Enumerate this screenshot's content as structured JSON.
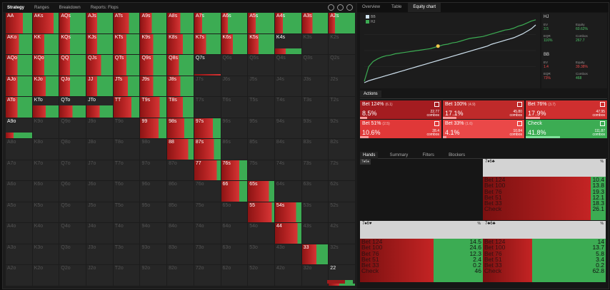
{
  "topbar": {
    "strategy": "Strategy",
    "ranges": "Ranges",
    "breakdown": "Breakdown",
    "reports": "Reports: Flops"
  },
  "grid": {
    "labels": [
      [
        "AA",
        "AKs",
        "AQs",
        "AJs",
        "ATs",
        "A9s",
        "A8s",
        "A7s",
        "A6s",
        "A5s",
        "A4s",
        "A3s",
        "A2s"
      ],
      [
        "AKo",
        "KK",
        "KQs",
        "KJs",
        "KTs",
        "K9s",
        "K8s",
        "K7s",
        "K6s",
        "K5s",
        "K4s",
        "K3s",
        "K2s"
      ],
      [
        "AQo",
        "KQo",
        "QQ",
        "QJs",
        "QTs",
        "Q9s",
        "Q8s",
        "Q7s",
        "Q6s",
        "Q5s",
        "Q4s",
        "Q3s",
        "Q2s"
      ],
      [
        "AJo",
        "KJo",
        "QJo",
        "JJ",
        "JTs",
        "J9s",
        "J8s",
        "J7s",
        "J6s",
        "J5s",
        "J4s",
        "J3s",
        "J2s"
      ],
      [
        "ATo",
        "KTo",
        "QTo",
        "JTo",
        "TT",
        "T9s",
        "T8s",
        "T7s",
        "T6s",
        "T5s",
        "T4s",
        "T3s",
        "T2s"
      ],
      [
        "A9o",
        "K9o",
        "Q9o",
        "J9o",
        "T9o",
        "99",
        "98s",
        "97s",
        "96s",
        "95s",
        "94s",
        "93s",
        "92s"
      ],
      [
        "A8o",
        "K8o",
        "Q8o",
        "J8o",
        "T8o",
        "98o",
        "88",
        "87s",
        "86s",
        "85s",
        "84s",
        "83s",
        "82s"
      ],
      [
        "A7o",
        "K7o",
        "Q7o",
        "J7o",
        "T7o",
        "97o",
        "87o",
        "77",
        "76s",
        "75s",
        "74s",
        "73s",
        "72s"
      ],
      [
        "A6o",
        "K6o",
        "Q6o",
        "J6o",
        "T6o",
        "96o",
        "86o",
        "76o",
        "66",
        "65s",
        "64s",
        "63s",
        "62s"
      ],
      [
        "A5o",
        "K5o",
        "Q5o",
        "J5o",
        "T5o",
        "95o",
        "85o",
        "75o",
        "65o",
        "55",
        "54s",
        "53s",
        "52s"
      ],
      [
        "A4o",
        "K4o",
        "Q4o",
        "J4o",
        "T4o",
        "94o",
        "84o",
        "74o",
        "64o",
        "54o",
        "44",
        "43s",
        "42s"
      ],
      [
        "A3o",
        "K3o",
        "Q3o",
        "J3o",
        "T3o",
        "93o",
        "83o",
        "73o",
        "63o",
        "53o",
        "43o",
        "33",
        "32s"
      ],
      [
        "A2o",
        "K2o",
        "Q2o",
        "J2o",
        "T2o",
        "92o",
        "82o",
        "72o",
        "62o",
        "52o",
        "42o",
        "32o",
        "22"
      ]
    ],
    "weights": [
      [
        1,
        1,
        1,
        1,
        1,
        1,
        1,
        1,
        1,
        1,
        1,
        1,
        1
      ],
      [
        1,
        1,
        1,
        1,
        1,
        1,
        1,
        1,
        1,
        1,
        0.3,
        0,
        0
      ],
      [
        1,
        1,
        1,
        1,
        1,
        1,
        1,
        0.05,
        0,
        0,
        0,
        0,
        0
      ],
      [
        1,
        1,
        1,
        1,
        1,
        1,
        1,
        0,
        0,
        0,
        0,
        0,
        0
      ],
      [
        1,
        0.6,
        0.6,
        0.6,
        1,
        1,
        1,
        0,
        0,
        0,
        0,
        0,
        0
      ],
      [
        0.3,
        0,
        0,
        0,
        0,
        1,
        1,
        1,
        0,
        0,
        0,
        0,
        0
      ],
      [
        0,
        0,
        0,
        0,
        0,
        0,
        1,
        1,
        0,
        0,
        0,
        0,
        0
      ],
      [
        0,
        0,
        0,
        0,
        0,
        0,
        0,
        1,
        1,
        0,
        0,
        0,
        0
      ],
      [
        0,
        0,
        0,
        0,
        0,
        0,
        0,
        0,
        1,
        1,
        0,
        0,
        0
      ],
      [
        0,
        0,
        0,
        0,
        0,
        0,
        0,
        0,
        0,
        1,
        1,
        0,
        0
      ],
      [
        0,
        0,
        0,
        0,
        0,
        0,
        0,
        0,
        0,
        0,
        1,
        0,
        0
      ],
      [
        0,
        0,
        0,
        0,
        0,
        0,
        0,
        0,
        0,
        0,
        0,
        1,
        0
      ],
      [
        0,
        0,
        0,
        0,
        0,
        0,
        0,
        0,
        0,
        0,
        0,
        0,
        0.1
      ]
    ],
    "green_share": [
      [
        0.35,
        0.2,
        0.6,
        0.6,
        0.4,
        0.55,
        0.5,
        0.7,
        0.75,
        0.7,
        0.7,
        0.6,
        0.75
      ],
      [
        0.5,
        0.55,
        0.6,
        0.6,
        0.5,
        0.5,
        0.4,
        0.55,
        0.55,
        0.6,
        0.6,
        0,
        0
      ],
      [
        0.55,
        0.55,
        0.6,
        0.45,
        0.5,
        0.5,
        0.55,
        0,
        0,
        0,
        0,
        0,
        0
      ],
      [
        0.55,
        0.5,
        0.6,
        0.6,
        0.45,
        0.5,
        0.5,
        0,
        0,
        0,
        0,
        0,
        0
      ],
      [
        0.55,
        0.5,
        0.5,
        0.5,
        0.3,
        0.25,
        0.4,
        0,
        0,
        0,
        0,
        0,
        0
      ],
      [
        0.7,
        0,
        0,
        0,
        0,
        0.3,
        0.35,
        0.3,
        0,
        0,
        0,
        0,
        0
      ],
      [
        0,
        0,
        0,
        0,
        0,
        0,
        0.2,
        0.25,
        0,
        0,
        0,
        0,
        0
      ],
      [
        0,
        0,
        0,
        0,
        0,
        0,
        0,
        0.15,
        0.3,
        0,
        0,
        0,
        0
      ],
      [
        0,
        0,
        0,
        0,
        0,
        0,
        0,
        0,
        0.3,
        0.2,
        0,
        0,
        0
      ],
      [
        0,
        0,
        0,
        0,
        0,
        0,
        0,
        0,
        0,
        0.1,
        0.2,
        0,
        0
      ],
      [
        0,
        0,
        0,
        0,
        0,
        0,
        0,
        0,
        0,
        0,
        0.15,
        0,
        0
      ],
      [
        0,
        0,
        0,
        0,
        0,
        0,
        0,
        0,
        0,
        0,
        0,
        0.45,
        0
      ],
      [
        0,
        0,
        0,
        0,
        0,
        0,
        0,
        0,
        0,
        0,
        0,
        0,
        0.6
      ]
    ]
  },
  "right_tabs": [
    "Overview",
    "Table",
    "Equity chart"
  ],
  "equity_chart": {
    "legend": [
      "BB",
      "HJ"
    ]
  },
  "stats": {
    "hj": {
      "title": "HJ",
      "ev_label": "EV",
      "ev": "3.5",
      "eq_label": "Equity",
      "eq": "60.62%",
      "eqr_label": "EQR",
      "eqr": "116%",
      "combos_label": "Combos",
      "combos": "267.7"
    },
    "bb": {
      "title": "BB",
      "ev_label": "EV",
      "ev": "1.4",
      "eq_label": "Equity",
      "eq": "39.38%",
      "eqr_label": "EQR",
      "eqr": "73%",
      "combos_label": "Combos",
      "combos": "468"
    }
  },
  "actions_label": "Actions",
  "actions": [
    {
      "name": "Bet 124%",
      "sub": "(6.1)",
      "pct": "8.5%",
      "combos": "22.77",
      "combos_label": "combos",
      "color": "#a41c20",
      "barpct": 8.5
    },
    {
      "name": "Bet 100%",
      "sub": "(4.9)",
      "pct": "17.1%",
      "combos": "45.80",
      "combos_label": "combos",
      "color": "#bf2a2a",
      "barpct": 17.1
    },
    {
      "name": "Bet 76%",
      "sub": "(3.7)",
      "pct": "17.9%",
      "combos": "47.95",
      "combos_label": "combos",
      "color": "#cf2f2f",
      "barpct": 17.9
    },
    {
      "name": "Bet 51%",
      "sub": "(2.5)",
      "pct": "10.6%",
      "combos": "28.4",
      "combos_label": "combos",
      "color": "#e03838",
      "barpct": 10.6
    },
    {
      "name": "Bet 33%",
      "sub": "(1.6)",
      "pct": "4.1%",
      "combos": "10.84",
      "combos_label": "combos",
      "color": "#ea4848",
      "barpct": 4.1
    },
    {
      "name": "Check",
      "sub": "",
      "pct": "41.8%",
      "combos": "111.87",
      "combos_label": "combos",
      "color": "#3cac53",
      "barpct": 41.8
    }
  ],
  "hands_tabs": [
    "Hands",
    "Summary",
    "Filters",
    "Blockers"
  ],
  "hand_tag": "7♠6♠",
  "hand_cards": [
    {
      "title": "7♦6♣",
      "pct": "%",
      "rows": [
        [
          "Bet 124",
          "10.4"
        ],
        [
          "Bet 100",
          "13.8"
        ],
        [
          "Bet 76",
          "19.3"
        ],
        [
          "Bet 51",
          "12.1"
        ],
        [
          "Bet 33",
          "18.3"
        ],
        [
          "Check",
          "26.1"
        ]
      ],
      "green": 0.12
    },
    {
      "title": "7♠6♥",
      "pct": "%",
      "rows": [
        [
          "Bet 124",
          "14.5"
        ],
        [
          "Bet 100",
          "24.6"
        ],
        [
          "Bet 76",
          "12.3"
        ],
        [
          "Bet 51",
          "2.4"
        ],
        [
          "Bet 33",
          "0.2"
        ],
        [
          "Check",
          "46"
        ]
      ],
      "green": 0.4
    },
    {
      "title": "7♣6♣",
      "pct": "%",
      "rows": [
        [
          "Bet 124",
          "14"
        ],
        [
          "Bet 100",
          "13.7"
        ],
        [
          "Bet 76",
          "5.8"
        ],
        [
          "Bet 51",
          "3.4"
        ],
        [
          "Bet 33",
          "0.2"
        ],
        [
          "Check",
          "62.8"
        ]
      ],
      "green": 0.6
    }
  ],
  "chart_data": {
    "type": "line",
    "series": [
      {
        "name": "HJ",
        "color": "#3cac53",
        "values": [
          0.02,
          0.25,
          0.33,
          0.37,
          0.4,
          0.42,
          0.43,
          0.45,
          0.46,
          0.47,
          0.48,
          0.49,
          0.5,
          0.51,
          0.52,
          0.53,
          0.55,
          0.57,
          0.59,
          0.6,
          0.62,
          0.63,
          0.65,
          0.67,
          0.69,
          0.7,
          0.71,
          0.72,
          0.74,
          0.76,
          0.78,
          0.8,
          0.82,
          0.83,
          0.85,
          0.88,
          0.9,
          0.93,
          0.96,
          0.98
        ]
      },
      {
        "name": "BB",
        "color": "#cfe2ef",
        "values": [
          0.0,
          0.03,
          0.05,
          0.07,
          0.09,
          0.11,
          0.13,
          0.15,
          0.17,
          0.19,
          0.21,
          0.23,
          0.25,
          0.27,
          0.29,
          0.31,
          0.33,
          0.35,
          0.37,
          0.39,
          0.41,
          0.43,
          0.45,
          0.47,
          0.49,
          0.51,
          0.53,
          0.55,
          0.57,
          0.6,
          0.62,
          0.64,
          0.66,
          0.68,
          0.7,
          0.73,
          0.76,
          0.8,
          0.84,
          0.9
        ]
      }
    ],
    "ylim": [
      0,
      1
    ]
  }
}
